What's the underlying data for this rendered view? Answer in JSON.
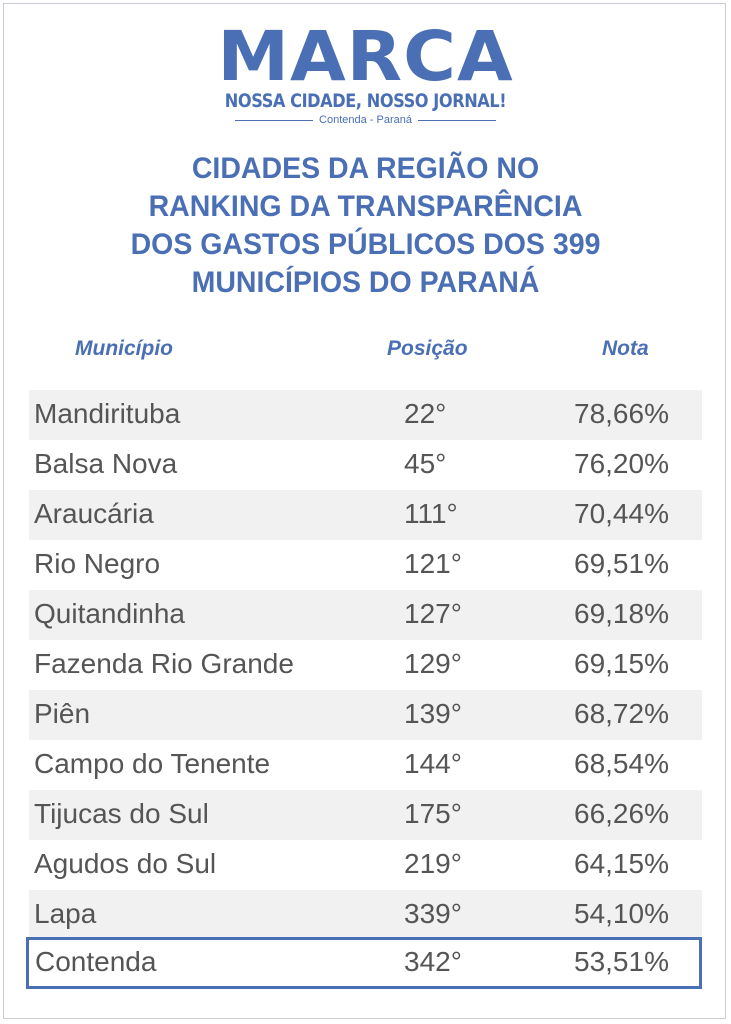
{
  "logo": {
    "name": "MARCA",
    "tagline": "NOSSA CIDADE, NOSSO JORNAL!",
    "location": "Contenda - Paraná"
  },
  "title": {
    "line1": "CIDADES DA REGIÃO NO",
    "line2": "RANKING DA TRANSPARÊNCIA",
    "line3": "DOS GASTOS PÚBLICOS DOS 399",
    "line4": "MUNICÍPIOS DO PARANÁ"
  },
  "table": {
    "headers": {
      "municipio": "Município",
      "posicao": "Posição",
      "nota": "Nota"
    },
    "rows": [
      {
        "municipio": "Mandirituba",
        "posicao": "22°",
        "nota": "78,66%"
      },
      {
        "municipio": "Balsa Nova",
        "posicao": "45°",
        "nota": "76,20%"
      },
      {
        "municipio": "Araucária",
        "posicao": "111°",
        "nota": "70,44%"
      },
      {
        "municipio": "Rio Negro",
        "posicao": "121°",
        "nota": "69,51%"
      },
      {
        "municipio": "Quitandinha",
        "posicao": "127°",
        "nota": "69,18%"
      },
      {
        "municipio": "Fazenda Rio Grande",
        "posicao": "129°",
        "nota": "69,15%"
      },
      {
        "municipio": "Piên",
        "posicao": "139°",
        "nota": "68,72%"
      },
      {
        "municipio": "Campo do Tenente",
        "posicao": "144°",
        "nota": "68,54%"
      },
      {
        "municipio": "Tijucas do Sul",
        "posicao": "175°",
        "nota": "66,26%"
      },
      {
        "municipio": "Agudos do Sul",
        "posicao": "219°",
        "nota": "64,15%"
      },
      {
        "municipio": "Lapa",
        "posicao": "339°",
        "nota": "54,10%"
      },
      {
        "municipio": "Contenda",
        "posicao": "342°",
        "nota": "53,51%"
      }
    ],
    "highlighted_municipio": "Contenda"
  },
  "colors": {
    "accent": "#4a6fb5",
    "row_alt": "#f1f1f1",
    "text": "#555555"
  }
}
